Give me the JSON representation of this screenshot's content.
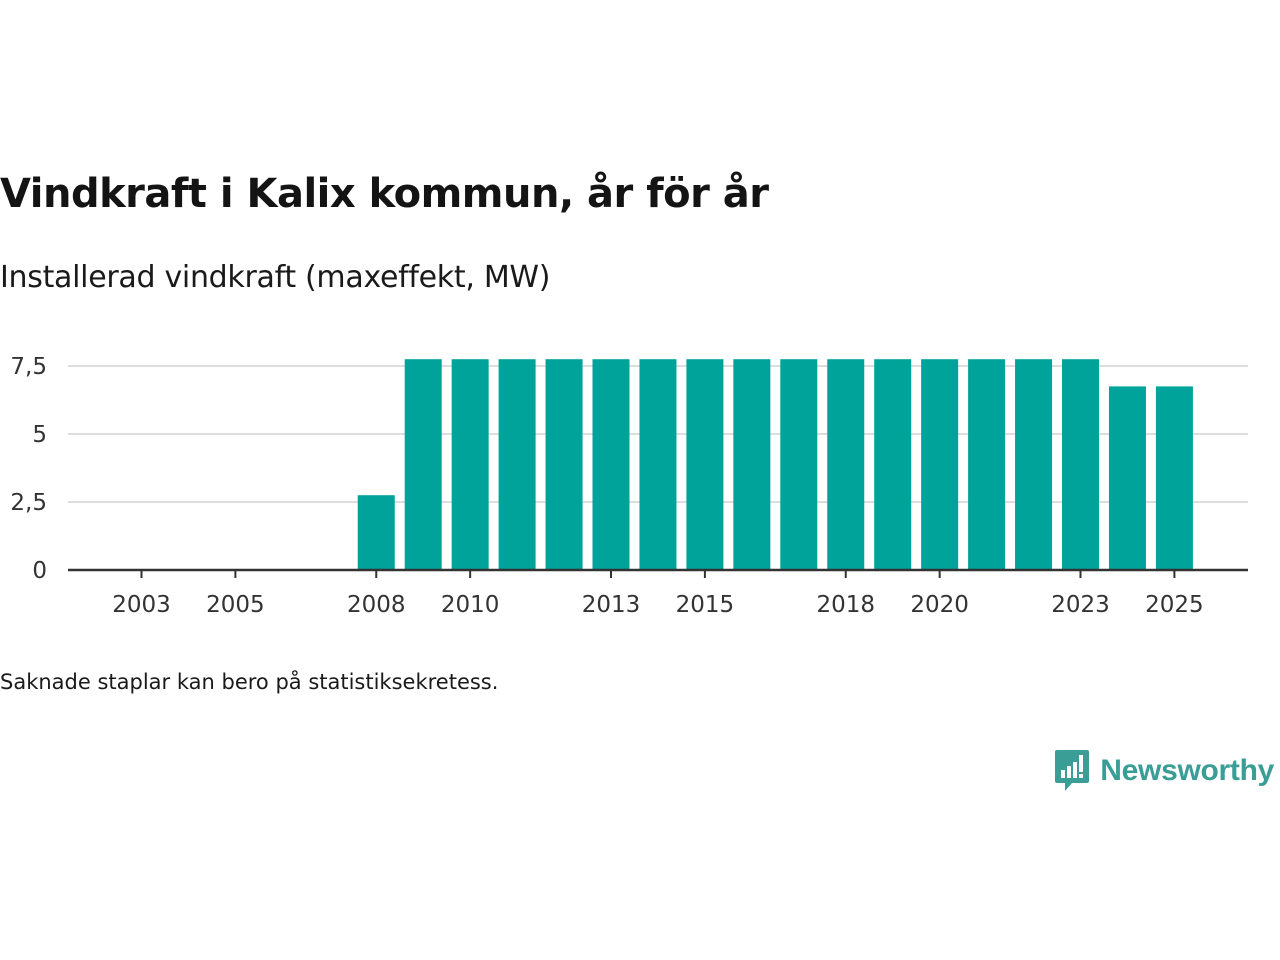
{
  "page": {
    "title": "Vindkraft i Kalix kommun, år för år",
    "subtitle": "Installerad vindkraft (maxeffekt, MW)",
    "footnote": "Saknade staplar kan bero på statistiksekretess.",
    "brand": "Newsworthy"
  },
  "colors": {
    "bar": "#00a39a",
    "grid": "#dddddd",
    "axis": "#333333",
    "brand": "#3a9e96"
  },
  "chart_data": {
    "type": "bar",
    "title": "Vindkraft i Kalix kommun, år för år",
    "subtitle": "Installerad vindkraft (maxeffekt, MW)",
    "xlabel": "",
    "ylabel": "Installerad vindkraft (maxeffekt, MW)",
    "ylim": [
      0,
      8.1
    ],
    "yticks": [
      0,
      2.5,
      5,
      7.5
    ],
    "ytick_labels": [
      "0",
      "2,5",
      "5",
      "7,5"
    ],
    "categories": [
      "2003",
      "2004",
      "2005",
      "2006",
      "2007",
      "2008",
      "2009",
      "2010",
      "2011",
      "2012",
      "2013",
      "2014",
      "2015",
      "2016",
      "2017",
      "2018",
      "2019",
      "2020",
      "2021",
      "2022",
      "2023",
      "2024",
      "2025"
    ],
    "xtick_labels": [
      "2003",
      "2005",
      "2008",
      "2010",
      "2013",
      "2015",
      "2018",
      "2020",
      "2023",
      "2025"
    ],
    "values": [
      null,
      null,
      null,
      null,
      null,
      2.75,
      7.75,
      7.75,
      7.75,
      7.75,
      7.75,
      7.75,
      7.75,
      7.75,
      7.75,
      7.75,
      7.75,
      7.75,
      7.75,
      7.75,
      7.75,
      6.75,
      6.75
    ],
    "grid": true,
    "legend": "none"
  }
}
